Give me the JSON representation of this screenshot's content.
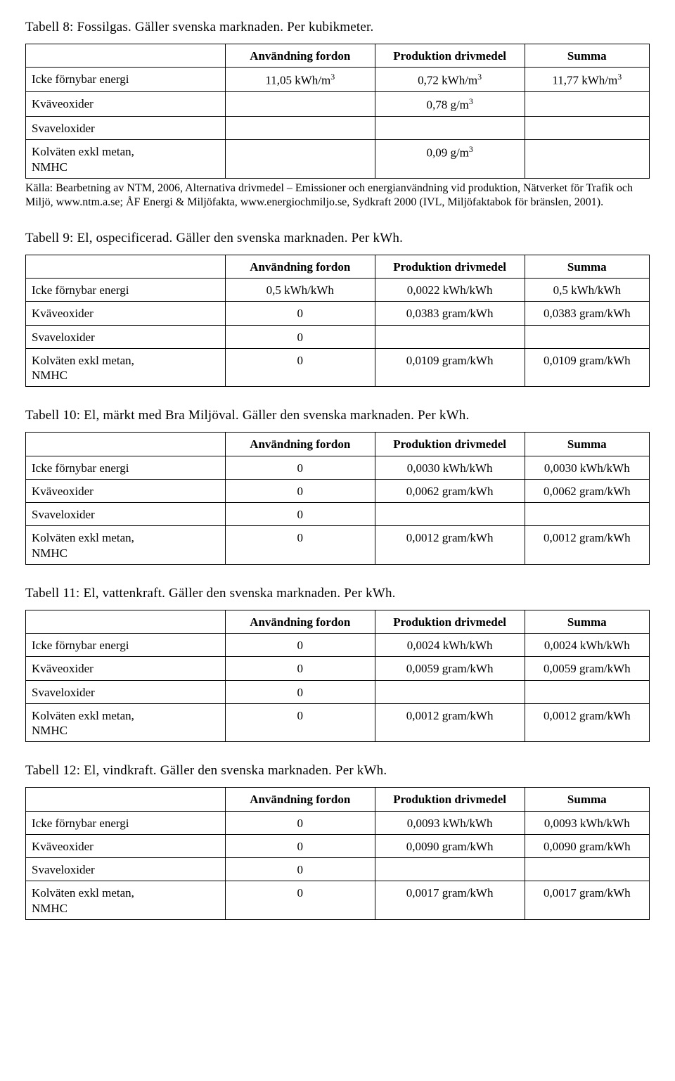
{
  "headers": {
    "h1": "Användning fordon",
    "h2": "Produktion drivmedel",
    "h3": "Summa"
  },
  "rowLabels": {
    "r1": "Icke förnybar energi",
    "r2": "Kväveoxider",
    "r3": "Svaveloxider",
    "r4a": "Kolväten exkl metan,",
    "r4b": "NMHC"
  },
  "value0": "0",
  "styling": {
    "border_color": "#000000",
    "background": "#ffffff",
    "text_color": "#000000",
    "title_fontsize_pt": 14,
    "body_fontsize_pt": 12,
    "footnote_fontsize_pt": 11,
    "col_widths_pct": [
      32,
      24,
      24,
      20
    ]
  },
  "t8": {
    "title": "Tabell 8: Fossilgas. Gäller svenska marknaden. Per kubikmeter.",
    "r1v1_a": "11,05 kWh/m",
    "r1v1_b": "3",
    "r1v2_a": "0,72 kWh/m",
    "r1v2_b": "3",
    "r1v3_a": "11,77 kWh/m",
    "r1v3_b": "3",
    "r2v2_a": "0,78 g/m",
    "r2v2_b": "3",
    "r4v2_a": "0,09 g/m",
    "r4v2_b": "3",
    "footnote": "Källa: Bearbetning av NTM, 2006, Alternativa drivmedel – Emissioner och energianvändning vid produktion, Nätverket för Trafik och Miljö, www.ntm.a.se; ÅF Energi & Miljöfakta, www.energiochmiljo.se, Sydkraft 2000 (IVL, Miljöfaktabok för bränslen, 2001)."
  },
  "t9": {
    "title": "Tabell 9: El, ospecificerad. Gäller den svenska marknaden. Per kWh.",
    "r1v1": "0,5 kWh/kWh",
    "r1v2": "0,0022 kWh/kWh",
    "r1v3": "0,5 kWh/kWh",
    "r2v2": "0,0383 gram/kWh",
    "r2v3": "0,0383 gram/kWh",
    "r4v2": "0,0109 gram/kWh",
    "r4v3": "0,0109 gram/kWh"
  },
  "t10": {
    "title": "Tabell 10: El, märkt med Bra Miljöval. Gäller den svenska marknaden. Per kWh.",
    "r1v2": "0,0030 kWh/kWh",
    "r1v3": "0,0030 kWh/kWh",
    "r2v2": "0,0062 gram/kWh",
    "r2v3": "0,0062 gram/kWh",
    "r4v2": "0,0012 gram/kWh",
    "r4v3": "0,0012 gram/kWh"
  },
  "t11": {
    "title": "Tabell 11: El, vattenkraft. Gäller den svenska marknaden. Per kWh.",
    "r1v2": "0,0024 kWh/kWh",
    "r1v3": "0,0024 kWh/kWh",
    "r2v2": "0,0059 gram/kWh",
    "r2v3": "0,0059 gram/kWh",
    "r4v2": "0,0012 gram/kWh",
    "r4v3": "0,0012 gram/kWh"
  },
  "t12": {
    "title": "Tabell 12: El, vindkraft. Gäller den svenska marknaden. Per kWh.",
    "r1v2": "0,0093 kWh/kWh",
    "r1v3": "0,0093 kWh/kWh",
    "r2v2": "0,0090 gram/kWh",
    "r2v3": "0,0090 gram/kWh",
    "r4v2": "0,0017 gram/kWh",
    "r4v3": "0,0017 gram/kWh"
  }
}
